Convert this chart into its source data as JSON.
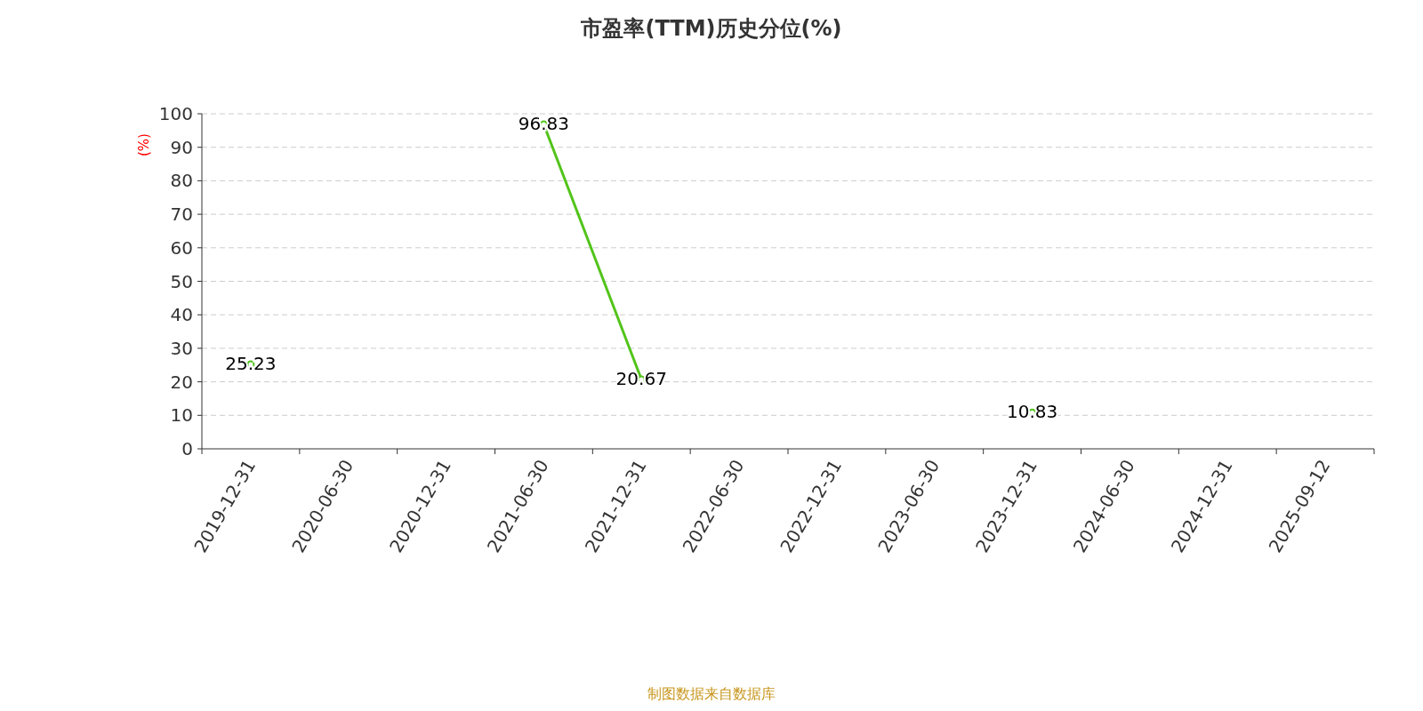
{
  "chart_data": {
    "type": "line",
    "title": "市盈率(TTM)历史分位(%)",
    "ylabel": "(%)",
    "categories": [
      "2019-12-31",
      "2020-06-30",
      "2020-12-31",
      "2021-06-30",
      "2021-12-31",
      "2022-06-30",
      "2022-12-31",
      "2023-06-30",
      "2023-12-31",
      "2024-06-30",
      "2024-12-31",
      "2025-09-12"
    ],
    "series": [
      {
        "color": "#52c41a",
        "values": [
          25.23,
          null,
          null,
          96.83,
          20.67,
          null,
          null,
          null,
          10.83,
          null,
          null,
          null
        ]
      }
    ],
    "ylim": [
      0,
      100
    ],
    "yticks": [
      0,
      10,
      20,
      30,
      40,
      50,
      60,
      70,
      80,
      90,
      100
    ],
    "grid": "y",
    "marker": "circle",
    "data_labels": true,
    "annotations": [
      "制图数据来自数据库"
    ]
  }
}
